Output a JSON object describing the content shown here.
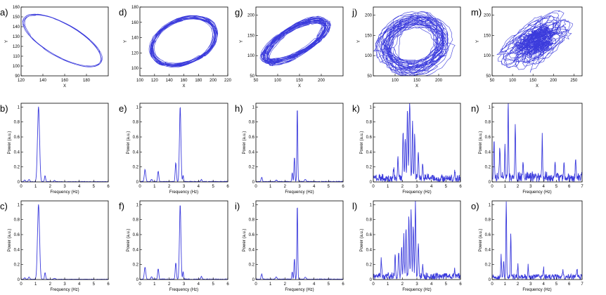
{
  "figure": {
    "line_color": "#3b3bdc",
    "axis_color": "#000000"
  },
  "chart_data": [
    {
      "id": "a",
      "panel_label": "a)",
      "type": "line",
      "subtype": "trajectory",
      "xlabel": "X",
      "ylabel": "Y",
      "xlim": [
        120,
        200
      ],
      "ylim": [
        90,
        160
      ],
      "xticks": [
        120,
        140,
        160,
        180
      ],
      "yticks": [
        90,
        100,
        110,
        120,
        130,
        140,
        150,
        160
      ],
      "trajectory": {
        "cx": 158,
        "cy": 126,
        "rx": 37,
        "ry": 27,
        "jitter": 0.05,
        "loops": 4,
        "wobble": 0.015,
        "points": 260,
        "seed": 3
      }
    },
    {
      "id": "d",
      "panel_label": "d)",
      "type": "line",
      "subtype": "trajectory",
      "xlabel": "X",
      "ylabel": "Y",
      "xlim": [
        100,
        220
      ],
      "ylim": [
        90,
        180
      ],
      "xticks": [
        100,
        120,
        140,
        160,
        180,
        200,
        220
      ],
      "yticks": [
        100,
        120,
        140,
        160,
        180
      ],
      "trajectory": {
        "cx": 160,
        "cy": 135,
        "rx": 46,
        "ry": 33,
        "jitter": 0.12,
        "loops": 18,
        "wobble": 0.05,
        "points": 900,
        "seed": 7
      }
    },
    {
      "id": "g",
      "panel_label": "g)",
      "type": "line",
      "subtype": "trajectory",
      "xlabel": "X",
      "ylabel": "Y",
      "xlim": [
        50,
        250
      ],
      "ylim": [
        50,
        220
      ],
      "xticks": [
        50,
        100,
        150,
        200
      ],
      "yticks": [
        50,
        100,
        150,
        200
      ],
      "trajectory": {
        "cx": 140,
        "cy": 135,
        "rx": 78,
        "ry": 58,
        "jitter": 0.22,
        "loops": 30,
        "wobble": 0.08,
        "points": 1400,
        "seed": 11
      }
    },
    {
      "id": "j",
      "panel_label": "j)",
      "type": "line",
      "subtype": "trajectory",
      "xlabel": "X",
      "ylabel": "Y",
      "xlim": [
        50,
        250
      ],
      "ylim": [
        50,
        220
      ],
      "xticks": [
        100,
        150,
        200
      ],
      "yticks": [
        50,
        100,
        150,
        200
      ],
      "trajectory": {
        "cx": 145,
        "cy": 130,
        "rx": 80,
        "ry": 72,
        "jitter": 0.35,
        "loops": 34,
        "wobble": 0.22,
        "points": 1500,
        "seed": 19
      }
    },
    {
      "id": "m",
      "panel_label": "m)",
      "type": "line",
      "subtype": "trajectory",
      "xlabel": "X",
      "ylabel": "Y",
      "xlim": [
        50,
        270
      ],
      "ylim": [
        50,
        220
      ],
      "xticks": [
        50,
        100,
        150,
        200,
        250
      ],
      "yticks": [
        50,
        100,
        150,
        200
      ],
      "trajectory": {
        "cx": 155,
        "cy": 135,
        "rx": 70,
        "ry": 60,
        "jitter": 0.5,
        "loops": 60,
        "wobble": 0.4,
        "points": 2200,
        "seed": 23,
        "dense_core": true
      }
    },
    {
      "id": "b",
      "panel_label": "b)",
      "type": "line",
      "subtype": "spectrum",
      "xlabel": "Frequency (Hz)",
      "ylabel": "Power (a.u.)",
      "xlim": [
        0,
        6
      ],
      "ylim": [
        0,
        1.05
      ],
      "xticks": [
        0,
        1,
        2,
        3,
        4,
        5,
        6
      ],
      "yticks": [
        0,
        0.2,
        0.4,
        0.6,
        0.8,
        1
      ],
      "peaks": [
        [
          1.2,
          1.0,
          0.07
        ],
        [
          0.55,
          0.03,
          0.05
        ],
        [
          1.65,
          0.08,
          0.04
        ],
        [
          2.3,
          0.015,
          0.05
        ],
        [
          0.25,
          0.02,
          0.05
        ]
      ],
      "noise": 0.004,
      "seed": 31
    },
    {
      "id": "e",
      "panel_label": "e)",
      "type": "line",
      "subtype": "spectrum",
      "xlabel": "Frequency (Hz)",
      "ylabel": "Power (a.u.)",
      "xlim": [
        0,
        6
      ],
      "ylim": [
        0,
        1.05
      ],
      "xticks": [
        0,
        1,
        2,
        3,
        4,
        5,
        6
      ],
      "yticks": [
        0,
        0.2,
        0.4,
        0.6,
        0.8,
        1
      ],
      "peaks": [
        [
          2.75,
          1.0,
          0.05
        ],
        [
          0.35,
          0.16,
          0.05
        ],
        [
          1.25,
          0.14,
          0.04
        ],
        [
          2.45,
          0.25,
          0.04
        ],
        [
          2.95,
          0.08,
          0.03
        ],
        [
          4.2,
          0.03,
          0.04
        ],
        [
          0.8,
          0.03,
          0.05
        ]
      ],
      "noise": 0.006,
      "seed": 37
    },
    {
      "id": "h",
      "panel_label": "h)",
      "type": "line",
      "subtype": "spectrum",
      "xlabel": "Frequency (Hz)",
      "ylabel": "Power (a.u.)",
      "xlim": [
        0,
        6
      ],
      "ylim": [
        0,
        1.05
      ],
      "xticks": [
        0,
        1,
        2,
        3,
        4,
        5,
        6
      ],
      "yticks": [
        0,
        0.2,
        0.4,
        0.6,
        0.8,
        1
      ],
      "peaks": [
        [
          2.85,
          1.0,
          0.03
        ],
        [
          2.65,
          0.33,
          0.03
        ],
        [
          2.5,
          0.12,
          0.03
        ],
        [
          0.4,
          0.06,
          0.04
        ],
        [
          1.4,
          0.02,
          0.05
        ],
        [
          3.4,
          0.03,
          0.05
        ]
      ],
      "noise": 0.006,
      "seed": 41
    },
    {
      "id": "k",
      "panel_label": "k)",
      "type": "line",
      "subtype": "spectrum",
      "xlabel": "Frequency (Hz)",
      "ylabel": "Power (a.u.)",
      "xlim": [
        0,
        6
      ],
      "ylim": [
        0,
        1.05
      ],
      "xticks": [
        0,
        1,
        2,
        3,
        4,
        5,
        6
      ],
      "yticks": [
        0,
        0.2,
        0.4,
        0.6,
        0.8,
        1
      ],
      "peaks": [
        [
          2.5,
          1.0,
          0.04
        ],
        [
          2.35,
          0.9,
          0.03
        ],
        [
          2.7,
          0.75,
          0.03
        ],
        [
          2.05,
          0.62,
          0.03
        ],
        [
          2.2,
          0.55,
          0.03
        ],
        [
          2.85,
          0.6,
          0.03
        ],
        [
          3.1,
          0.35,
          0.03
        ],
        [
          1.7,
          0.3,
          0.03
        ],
        [
          3.4,
          0.2,
          0.03
        ],
        [
          1.4,
          0.12,
          0.03
        ],
        [
          5.6,
          0.06,
          0.03
        ]
      ],
      "noise": 0.07,
      "seed": 43
    },
    {
      "id": "n",
      "panel_label": "n)",
      "type": "line",
      "subtype": "spectrum",
      "xlabel": "Frequency (Hz)",
      "ylabel": "Power (a.u.)",
      "xlim": [
        0,
        7
      ],
      "ylim": [
        0,
        1.05
      ],
      "xticks": [
        0,
        1,
        2,
        3,
        4,
        5,
        6,
        7
      ],
      "yticks": [
        0,
        0.2,
        0.4,
        0.6,
        0.8,
        1
      ],
      "peaks": [
        [
          1.25,
          1.0,
          0.03
        ],
        [
          1.8,
          0.72,
          0.03
        ],
        [
          0.15,
          0.5,
          0.03
        ],
        [
          0.6,
          0.42,
          0.03
        ],
        [
          1.0,
          0.38,
          0.03
        ],
        [
          3.9,
          0.55,
          0.03
        ],
        [
          2.4,
          0.22,
          0.03
        ],
        [
          4.9,
          0.22,
          0.03
        ],
        [
          5.6,
          0.25,
          0.03
        ],
        [
          6.5,
          0.22,
          0.03
        ]
      ],
      "noise": 0.09,
      "seed": 47
    },
    {
      "id": "c",
      "panel_label": "c)",
      "type": "line",
      "subtype": "spectrum",
      "xlabel": "Frequency (Hz)",
      "ylabel": "Power (a.u.)",
      "xlim": [
        0,
        6
      ],
      "ylim": [
        0,
        1.05
      ],
      "xticks": [
        0,
        1,
        2,
        3,
        4,
        5,
        6
      ],
      "yticks": [
        0,
        0.2,
        0.4,
        0.6,
        0.8,
        1
      ],
      "peaks": [
        [
          1.2,
          1.0,
          0.07
        ],
        [
          0.55,
          0.03,
          0.05
        ],
        [
          1.65,
          0.09,
          0.04
        ],
        [
          2.3,
          0.015,
          0.05
        ],
        [
          0.25,
          0.02,
          0.05
        ]
      ],
      "noise": 0.004,
      "seed": 53
    },
    {
      "id": "f",
      "panel_label": "f)",
      "type": "line",
      "subtype": "spectrum",
      "xlabel": "Frequency (Hz)",
      "ylabel": "Power (a.u.)",
      "xlim": [
        0,
        6
      ],
      "ylim": [
        0,
        1.05
      ],
      "xticks": [
        0,
        1,
        2,
        3,
        4,
        5,
        6
      ],
      "yticks": [
        0,
        0.2,
        0.4,
        0.6,
        0.8,
        1
      ],
      "peaks": [
        [
          2.75,
          1.0,
          0.05
        ],
        [
          0.35,
          0.16,
          0.05
        ],
        [
          1.25,
          0.14,
          0.04
        ],
        [
          2.45,
          0.22,
          0.04
        ],
        [
          2.95,
          0.1,
          0.03
        ],
        [
          4.2,
          0.04,
          0.04
        ],
        [
          0.8,
          0.03,
          0.05
        ]
      ],
      "noise": 0.006,
      "seed": 59
    },
    {
      "id": "i",
      "panel_label": "i)",
      "type": "line",
      "subtype": "spectrum",
      "xlabel": "Frequency (Hz)",
      "ylabel": "Power (a.u.)",
      "xlim": [
        0,
        6
      ],
      "ylim": [
        0,
        1.05
      ],
      "xticks": [
        0,
        1,
        2,
        3,
        4,
        5,
        6
      ],
      "yticks": [
        0,
        0.2,
        0.4,
        0.6,
        0.8,
        1
      ],
      "peaks": [
        [
          2.85,
          1.0,
          0.03
        ],
        [
          2.65,
          0.28,
          0.03
        ],
        [
          2.5,
          0.1,
          0.03
        ],
        [
          0.4,
          0.07,
          0.04
        ],
        [
          1.4,
          0.03,
          0.05
        ],
        [
          3.4,
          0.03,
          0.05
        ]
      ],
      "noise": 0.006,
      "seed": 61
    },
    {
      "id": "l",
      "panel_label": "l)",
      "type": "line",
      "subtype": "spectrum",
      "xlabel": "Frequency (Hz)",
      "ylabel": "Power (a.u.)",
      "xlim": [
        0,
        6
      ],
      "ylim": [
        0,
        1.05
      ],
      "xticks": [
        0,
        1,
        2,
        3,
        4,
        5,
        6
      ],
      "yticks": [
        0,
        0.2,
        0.4,
        0.6,
        0.8,
        1
      ],
      "peaks": [
        [
          2.9,
          1.0,
          0.03
        ],
        [
          2.6,
          0.9,
          0.03
        ],
        [
          2.45,
          0.82,
          0.03
        ],
        [
          2.75,
          0.7,
          0.03
        ],
        [
          2.25,
          0.65,
          0.03
        ],
        [
          2.1,
          0.55,
          0.03
        ],
        [
          1.95,
          0.42,
          0.03
        ],
        [
          1.75,
          0.35,
          0.03
        ],
        [
          3.1,
          0.45,
          0.03
        ],
        [
          1.5,
          0.28,
          0.03
        ],
        [
          0.55,
          0.22,
          0.03
        ],
        [
          3.4,
          0.18,
          0.03
        ],
        [
          5.6,
          0.12,
          0.03
        ]
      ],
      "noise": 0.06,
      "seed": 67
    },
    {
      "id": "o",
      "panel_label": "o)",
      "type": "line",
      "subtype": "spectrum",
      "xlabel": "Frequency (Hz)",
      "ylabel": "Power (a.u.)",
      "xlim": [
        0,
        7
      ],
      "ylim": [
        0,
        1.05
      ],
      "xticks": [
        0,
        1,
        2,
        3,
        4,
        5,
        6,
        7
      ],
      "yticks": [
        0,
        0.2,
        0.4,
        0.6,
        0.8,
        1
      ],
      "peaks": [
        [
          1.1,
          1.0,
          0.03
        ],
        [
          1.45,
          0.55,
          0.03
        ],
        [
          0.7,
          0.3,
          0.03
        ],
        [
          0.9,
          0.22,
          0.03
        ],
        [
          2.0,
          0.15,
          0.03
        ],
        [
          2.8,
          0.15,
          0.03
        ],
        [
          4.0,
          0.12,
          0.03
        ],
        [
          5.5,
          0.1,
          0.03
        ],
        [
          6.6,
          0.1,
          0.03
        ]
      ],
      "noise": 0.05,
      "seed": 71
    }
  ]
}
